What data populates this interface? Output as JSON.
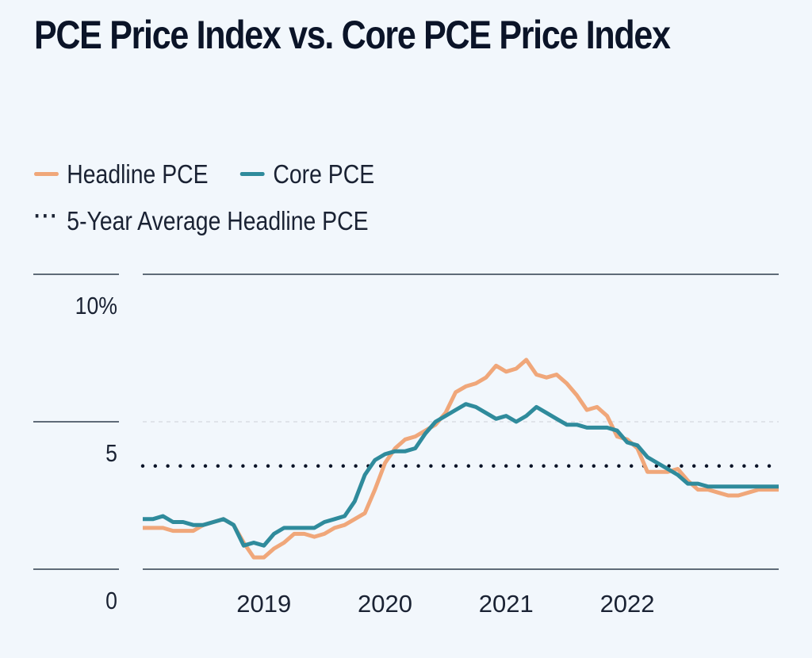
{
  "title": "PCE Price Index vs. Core PCE Price Index",
  "legend": {
    "headline_label": "Headline PCE",
    "core_label": "Core PCE",
    "average_label": "5-Year Average Headline PCE"
  },
  "colors": {
    "headline": "#f0a77a",
    "core": "#2f8b9c",
    "average": "#0b1428",
    "axis": "#5f6b78",
    "background": "#f2f7fc"
  },
  "chart_data": {
    "type": "line",
    "title": "PCE Price Index vs. Core PCE Price Index",
    "xlabel": "",
    "ylabel": "",
    "ylim": [
      0,
      10
    ],
    "y_ticks": [
      {
        "value": 10,
        "label": "10%"
      },
      {
        "value": 5,
        "label": "5"
      },
      {
        "value": 0,
        "label": "0"
      }
    ],
    "x_range": [
      "2018-01",
      "2023-04"
    ],
    "x_ticks": [
      {
        "month_index": 12,
        "label": "2019"
      },
      {
        "month_index": 24,
        "label": "2020"
      },
      {
        "month_index": 36,
        "label": "2021"
      },
      {
        "month_index": 48,
        "label": "2022"
      }
    ],
    "grid": true,
    "legend_position": "top-left",
    "series": [
      {
        "name": "Headline PCE",
        "values": [
          1.4,
          1.4,
          1.4,
          1.3,
          1.3,
          1.3,
          1.5,
          1.6,
          1.7,
          1.5,
          0.9,
          0.4,
          0.4,
          0.7,
          0.9,
          1.2,
          1.2,
          1.1,
          1.2,
          1.4,
          1.5,
          1.7,
          1.9,
          2.7,
          3.6,
          4.1,
          4.4,
          4.5,
          4.7,
          4.9,
          5.3,
          6.0,
          6.2,
          6.3,
          6.5,
          6.9,
          6.7,
          6.8,
          7.1,
          6.6,
          6.5,
          6.6,
          6.3,
          5.9,
          5.4,
          5.5,
          5.2,
          4.5,
          4.4,
          4.1,
          3.3,
          3.3,
          3.3,
          3.4,
          3.0,
          2.7,
          2.7,
          2.6,
          2.5,
          2.5,
          2.6,
          2.7,
          2.7,
          2.7
        ],
        "color": "#f0a77a"
      },
      {
        "name": "Core PCE",
        "values": [
          1.7,
          1.7,
          1.8,
          1.6,
          1.6,
          1.5,
          1.5,
          1.6,
          1.7,
          1.5,
          0.8,
          0.9,
          0.8,
          1.2,
          1.4,
          1.4,
          1.4,
          1.4,
          1.6,
          1.7,
          1.8,
          2.3,
          3.2,
          3.7,
          3.9,
          4.0,
          4.0,
          4.1,
          4.6,
          5.0,
          5.2,
          5.4,
          5.6,
          5.5,
          5.3,
          5.1,
          5.2,
          5.0,
          5.2,
          5.5,
          5.3,
          5.1,
          4.9,
          4.9,
          4.8,
          4.8,
          4.8,
          4.7,
          4.3,
          4.2,
          3.8,
          3.6,
          3.4,
          3.2,
          2.9,
          2.9,
          2.8,
          2.8,
          2.8,
          2.8,
          2.8,
          2.8,
          2.8,
          2.8
        ],
        "color": "#2f8b9c"
      },
      {
        "name": "5-Year Average Headline PCE",
        "style": "dotted",
        "constant": 3.5,
        "color": "#0b1428"
      }
    ]
  }
}
